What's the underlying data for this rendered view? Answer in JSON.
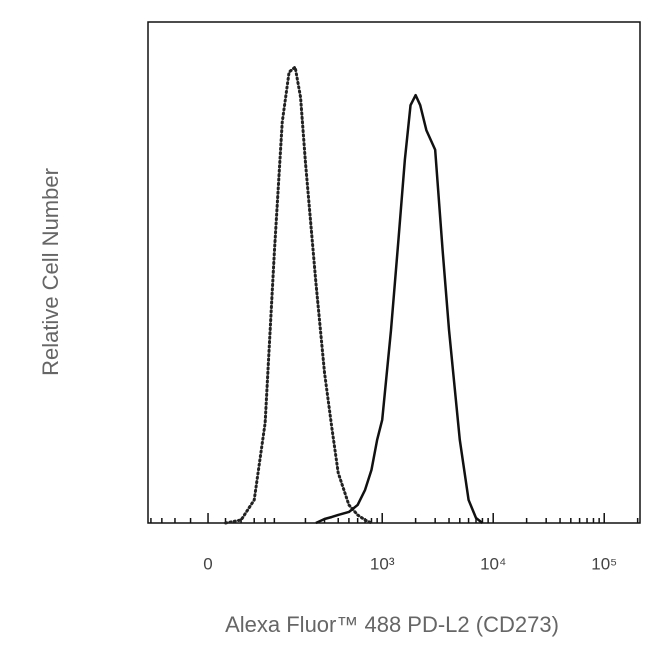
{
  "chart_data": {
    "type": "line",
    "x_label": "Alexa Fluor™ 488 PD-L2 (CD273)",
    "y_label": "Relative Cell Number",
    "xscale": "asinh",
    "xscale_cofactor": 54,
    "xlim": [
      -86,
      210000
    ],
    "xticks": [
      0,
      {
        "value": 1000,
        "label": "10³"
      },
      {
        "value": 10000,
        "label": "10⁴"
      },
      {
        "value": 100000,
        "label": "10⁵"
      }
    ],
    "xminorticks": [
      -80,
      -60,
      -40,
      -20,
      20,
      40,
      60,
      80,
      100,
      200,
      300,
      400,
      500,
      600,
      700,
      800,
      900,
      2000,
      3000,
      4000,
      5000,
      6000,
      7000,
      8000,
      9000,
      20000,
      30000,
      40000,
      50000,
      60000,
      70000,
      80000,
      90000,
      200000
    ],
    "ylim": [
      0,
      100
    ],
    "x": [
      20,
      40,
      60,
      80,
      100,
      120,
      140,
      160,
      180,
      200,
      250,
      300,
      350,
      400,
      500,
      600,
      700,
      800,
      900,
      1000,
      1200,
      1400,
      1600,
      1800,
      2000,
      2200,
      2500,
      3000,
      3500,
      4000,
      5000,
      6000,
      7000,
      8000
    ],
    "series": [
      {
        "color": "#222222",
        "dash": "dotted",
        "values": [
          0,
          0.6,
          4.6,
          20,
          54,
          80,
          90,
          91,
          85,
          72,
          48,
          30,
          19,
          10,
          3.6,
          1.6,
          0.6,
          0,
          null,
          null,
          null,
          null,
          null,
          null,
          null,
          null,
          null,
          null,
          null,
          null,
          null,
          null,
          null,
          null
        ]
      },
      {
        "color": "#111111",
        "dash": "solid",
        "values": [
          null,
          null,
          null,
          null,
          null,
          null,
          null,
          null,
          null,
          null,
          0,
          0.8,
          1.2,
          1.6,
          2.2,
          3.6,
          6.6,
          10.6,
          16.6,
          20.6,
          38.5,
          56.5,
          72.5,
          83.4,
          85.4,
          83.4,
          78.4,
          74.5,
          54.5,
          38.5,
          16.6,
          4.6,
          1,
          0
        ]
      }
    ]
  }
}
